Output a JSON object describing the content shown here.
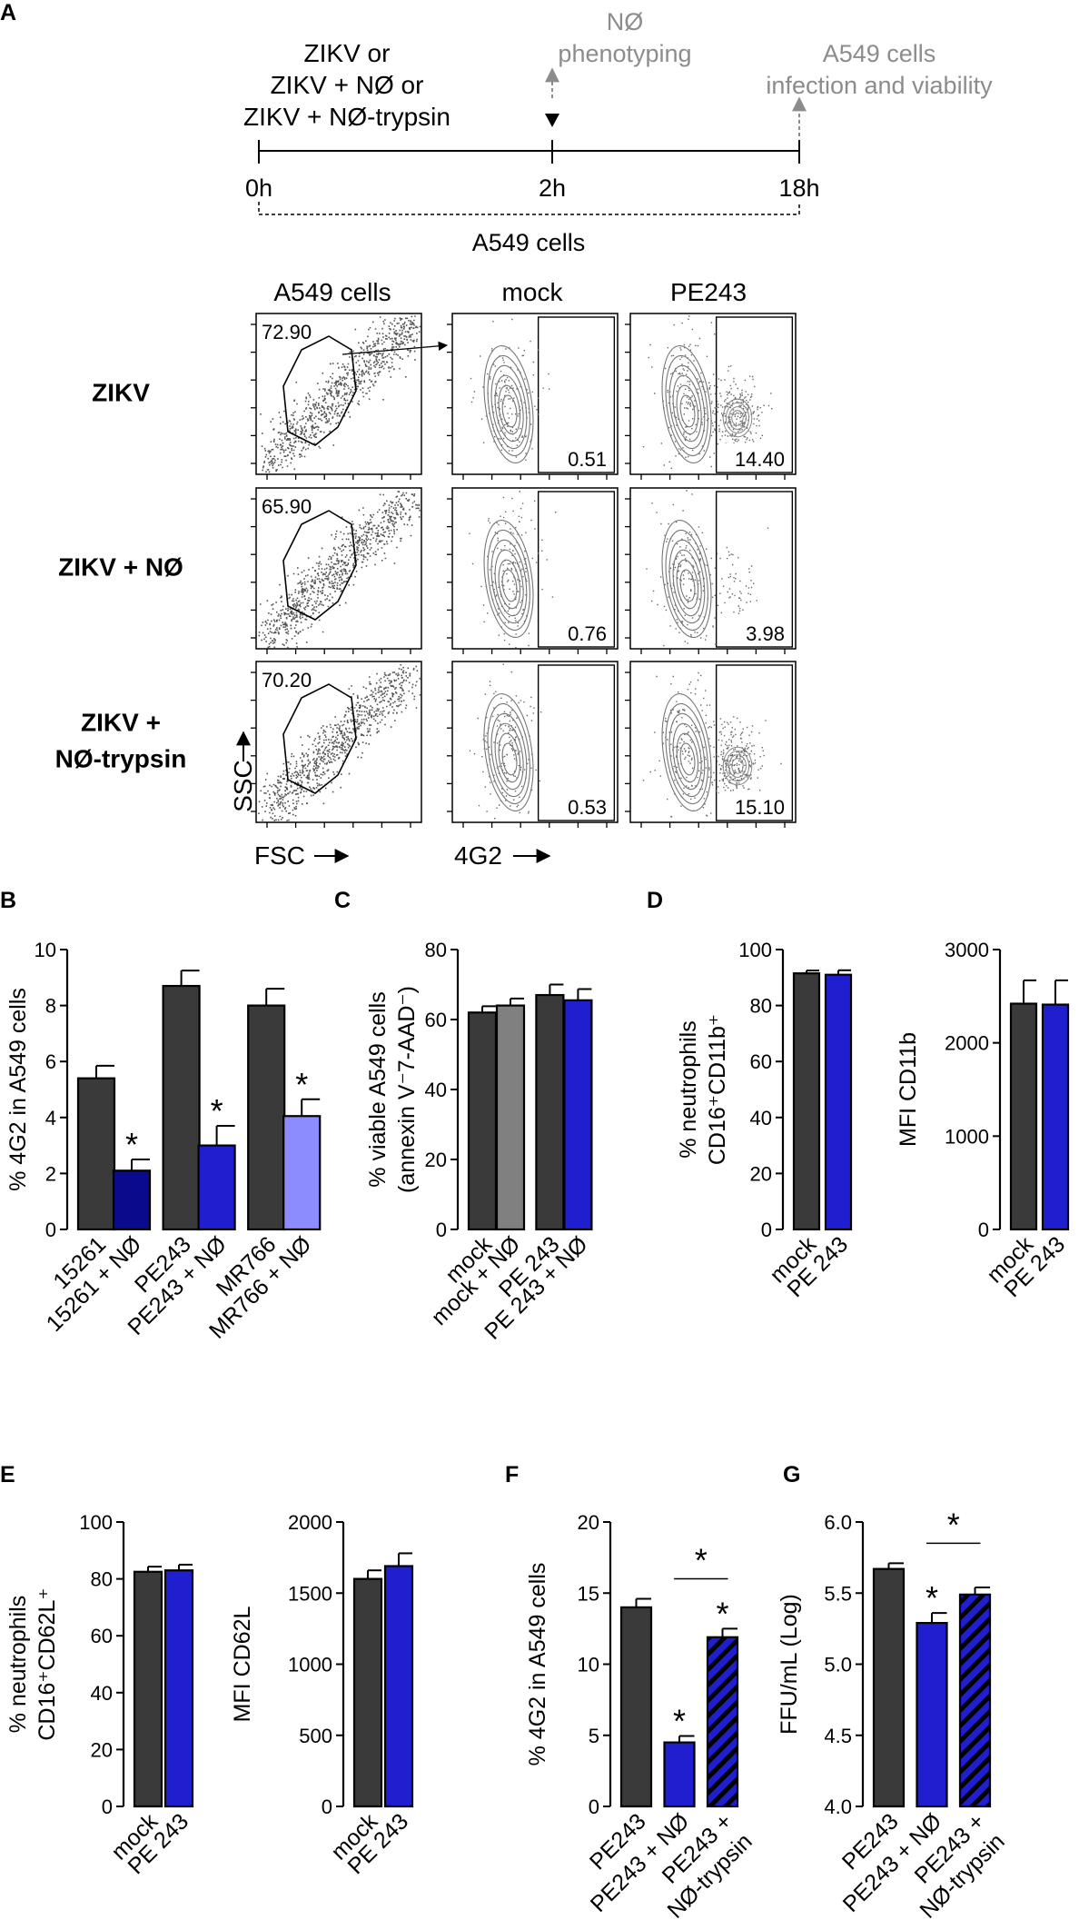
{
  "colors": {
    "dark": "#3a3a3a",
    "navy": "#0a0a8c",
    "blue": "#1f1fd0",
    "lightblue": "#8c8cff",
    "grey": "#808080",
    "annotation": "#8c8c8c"
  },
  "panel_labels": {
    "A": "A",
    "B": "B",
    "C": "C",
    "D": "D",
    "E": "E",
    "F": "F",
    "G": "G"
  },
  "timeline": {
    "treatment_line1": "ZIKV or",
    "treatment_line2": "ZIKV + NØ or",
    "treatment_line3": "ZIKV + NØ-trypsin",
    "ne_line1": "NØ",
    "ne_line2": "phenotyping",
    "a549_line1": "A549 cells",
    "a549_line2": "infection and viability",
    "t0": "0h",
    "t2": "2h",
    "t18": "18h",
    "bracket_label": "A549 cells"
  },
  "flow": {
    "col_headers": [
      "A549 cells",
      "mock",
      "PE243"
    ],
    "row_labels": [
      [
        "ZIKV"
      ],
      [
        "ZIKV + NØ"
      ],
      [
        "ZIKV +",
        "NØ-trypsin"
      ]
    ],
    "gate_percents": [
      "72.90",
      "65.90",
      "70.20"
    ],
    "mock_percents": [
      "0.51",
      "0.76",
      "0.53"
    ],
    "pe243_percents": [
      "14.40",
      "3.98",
      "15.10"
    ],
    "ssc_label": "SSC",
    "fsc_label": "FSC",
    "g2_label": "4G2"
  },
  "chart_data": [
    {
      "id": "B",
      "type": "bar",
      "ylabel": "% 4G2 in A549 cells",
      "ylim": [
        0,
        10
      ],
      "yticks": [
        "0",
        "2",
        "4",
        "6",
        "8",
        "10"
      ],
      "categories": [
        "15261",
        "15261 + NØ",
        "PE243",
        "PE243 + NØ",
        "MR766",
        "MR766 + NØ"
      ],
      "values": [
        5.4,
        2.1,
        8.7,
        3.0,
        8.0,
        4.05
      ],
      "errors": [
        0.45,
        0.4,
        0.55,
        0.7,
        0.6,
        0.6
      ],
      "colors": [
        "#3a3a3a",
        "#0a0a8c",
        "#3a3a3a",
        "#1f1fd0",
        "#3a3a3a",
        "#8c8cff"
      ],
      "stars": [
        "",
        "*",
        "",
        "*",
        "",
        "*"
      ]
    },
    {
      "id": "C",
      "type": "bar",
      "ylabel_line1": "% viable A549 cells",
      "ylabel_line2": "(annexin V⁻7-AAD⁻)",
      "ylim": [
        0,
        80
      ],
      "yticks": [
        "0",
        "20",
        "40",
        "60",
        "80"
      ],
      "categories": [
        "mock",
        "mock + NØ",
        "PE 243",
        "PE 243 + NØ"
      ],
      "values": [
        62,
        64,
        67,
        65.5
      ],
      "errors": [
        1.8,
        2.0,
        3.0,
        3.2
      ],
      "colors": [
        "#3a3a3a",
        "#808080",
        "#3a3a3a",
        "#1f1fd0"
      ]
    },
    {
      "id": "D1",
      "type": "bar",
      "ylabel_line1": "% neutrophils",
      "ylabel_line2": "CD16⁺CD11b⁺",
      "ylim": [
        0,
        100
      ],
      "yticks": [
        "0",
        "20",
        "40",
        "60",
        "80",
        "100"
      ],
      "categories": [
        "mock",
        "PE 243"
      ],
      "values": [
        91.5,
        91.0
      ],
      "errors": [
        1.0,
        1.6
      ],
      "colors": [
        "#3a3a3a",
        "#1f1fd0"
      ]
    },
    {
      "id": "D2",
      "type": "bar",
      "ylabel": "MFI CD11b",
      "ylim": [
        0,
        3000
      ],
      "yticks": [
        "0",
        "1000",
        "2000",
        "3000"
      ],
      "categories": [
        "mock",
        "PE 243"
      ],
      "values": [
        2420,
        2410
      ],
      "errors": [
        250,
        260
      ],
      "colors": [
        "#3a3a3a",
        "#1f1fd0"
      ]
    },
    {
      "id": "E1",
      "type": "bar",
      "ylabel_line1": "% neutrophils",
      "ylabel_line2": "CD16⁺CD62L⁺",
      "ylim": [
        0,
        100
      ],
      "yticks": [
        "0",
        "20",
        "40",
        "60",
        "80",
        "100"
      ],
      "categories": [
        "mock",
        "PE 243"
      ],
      "values": [
        82.5,
        83.0
      ],
      "errors": [
        1.8,
        2.0
      ],
      "colors": [
        "#3a3a3a",
        "#1f1fd0"
      ]
    },
    {
      "id": "E2",
      "type": "bar",
      "ylabel": "MFI CD62L",
      "ylim": [
        0,
        2000
      ],
      "yticks": [
        "0",
        "500",
        "1000",
        "1500",
        "2000"
      ],
      "categories": [
        "mock",
        "PE 243"
      ],
      "values": [
        1600,
        1690
      ],
      "errors": [
        60,
        90
      ],
      "colors": [
        "#3a3a3a",
        "#1f1fd0"
      ]
    },
    {
      "id": "F",
      "type": "bar",
      "ylabel": "% 4G2 in A549 cells",
      "ylim": [
        0,
        20
      ],
      "yticks": [
        "0",
        "5",
        "10",
        "15",
        "20"
      ],
      "categories": [
        "PE243",
        "PE243 + NØ",
        "PE243 +\nNØ-trypsin"
      ],
      "values": [
        14.0,
        4.5,
        11.9
      ],
      "errors": [
        0.6,
        0.45,
        0.6
      ],
      "colors": [
        "#3a3a3a",
        "#1f1fd0",
        "#1f1fd0"
      ],
      "hatched": [
        false,
        false,
        true
      ],
      "stars": [
        "",
        "*",
        "*"
      ],
      "bracket": {
        "from": 1,
        "to": 2,
        "label": "*"
      }
    },
    {
      "id": "G",
      "type": "bar",
      "ylabel": "FFU/mL (Log)",
      "ylim": [
        4.0,
        6.0
      ],
      "yticks": [
        "4.0",
        "4.5",
        "5.0",
        "5.5",
        "6.0"
      ],
      "categories": [
        "PE243",
        "PE243 + NØ",
        "PE243 +\nNØ-trypsin"
      ],
      "values": [
        5.67,
        5.29,
        5.49
      ],
      "errors": [
        0.04,
        0.07,
        0.05
      ],
      "colors": [
        "#3a3a3a",
        "#1f1fd0",
        "#1f1fd0"
      ],
      "hatched": [
        false,
        false,
        true
      ],
      "stars": [
        "",
        "*",
        ""
      ],
      "bracket": {
        "from": 1,
        "to": 2,
        "label": "*"
      }
    }
  ]
}
